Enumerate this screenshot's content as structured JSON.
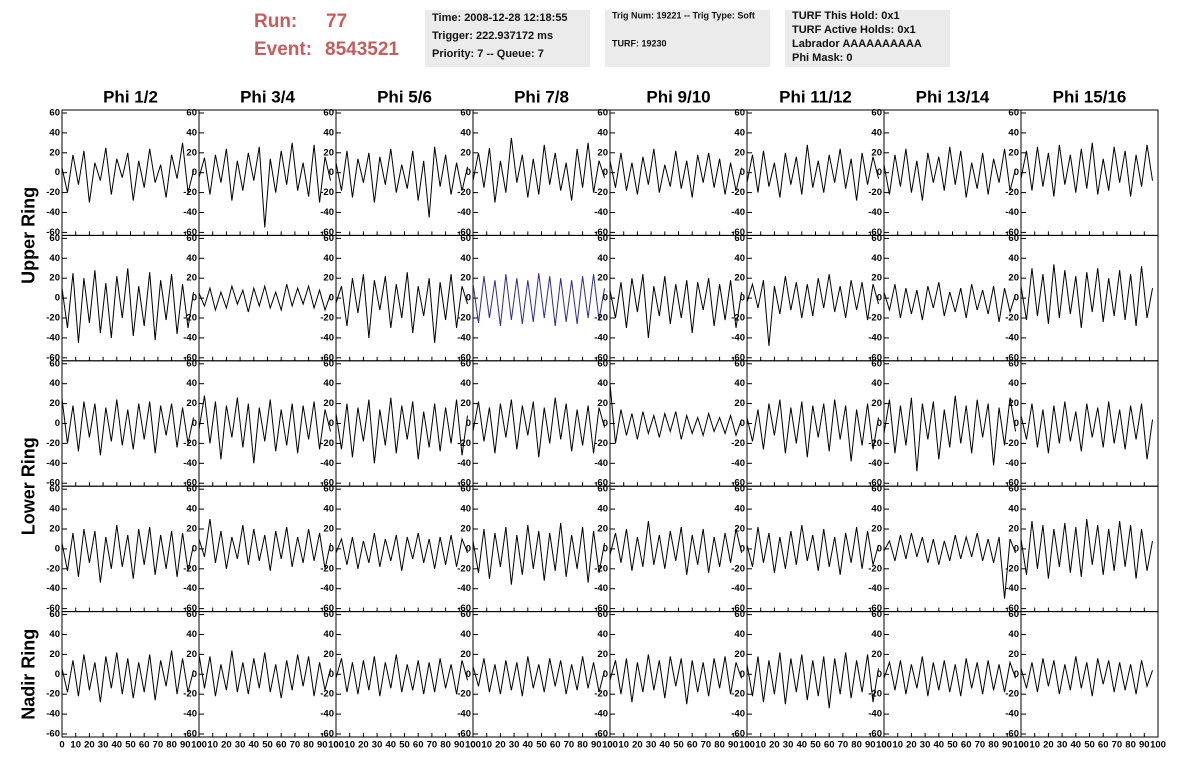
{
  "header": {
    "run_label": "Run:",
    "run": "77",
    "event_label": "Event:",
    "event": "8543521",
    "boxes": [
      [
        "Time: 2008-12-28 12:18:55",
        "Trigger: 222.937172 ms",
        "Priority: 7 -- Queue: 7"
      ],
      [
        "Trig Num: 19221 -- Trig Type: Soft",
        "TURF: 19230"
      ],
      [
        "TURF This Hold: 0x1",
        "TURF Active Holds: 0x1",
        "Labrador AAAAAAAAAA",
        "Phi Mask: 0"
      ]
    ]
  },
  "columns": [
    "Phi 1/2",
    "Phi 3/4",
    "Phi 5/6",
    "Phi 7/8",
    "Phi 9/10",
    "Phi 11/12",
    "Phi 13/14",
    "Phi 15/16"
  ],
  "ring_labels": [
    "Upper Ring",
    "Lower Ring",
    "Nadir Ring"
  ],
  "xlim": [
    0,
    100
  ],
  "ylim": [
    -63,
    63
  ],
  "xticks": [
    0,
    10,
    20,
    30,
    40,
    50,
    60,
    70,
    80,
    90,
    100
  ],
  "yticks": [
    60,
    40,
    20,
    0,
    -20,
    -40,
    -60
  ],
  "x": [
    0,
    4,
    8,
    12,
    16,
    20,
    24,
    28,
    32,
    36,
    40,
    44,
    48,
    52,
    56,
    60,
    64,
    68,
    72,
    76,
    80,
    84,
    88,
    92,
    96
  ],
  "rows": [
    [
      {
        "color": "#000000",
        "values": [
          5,
          -20,
          18,
          -12,
          22,
          -30,
          10,
          -8,
          25,
          -22,
          14,
          -5,
          20,
          -28,
          12,
          -15,
          24,
          -10,
          8,
          -25,
          18,
          -6,
          30,
          -20,
          2
        ]
      },
      {
        "color": "#000000",
        "values": [
          -5,
          15,
          -22,
          18,
          -10,
          24,
          -28,
          12,
          -18,
          20,
          -8,
          26,
          -55,
          14,
          -20,
          22,
          -12,
          30,
          -18,
          10,
          -24,
          28,
          -30,
          16,
          -8
        ]
      },
      {
        "color": "#000000",
        "values": [
          10,
          -18,
          22,
          -25,
          14,
          -10,
          20,
          -30,
          16,
          -12,
          24,
          -20,
          8,
          -16,
          22,
          -28,
          12,
          -45,
          26,
          -14,
          18,
          -22,
          10,
          -18,
          6
        ]
      },
      {
        "color": "#000000",
        "values": [
          -8,
          20,
          -15,
          25,
          -30,
          12,
          -20,
          35,
          -10,
          18,
          -25,
          14,
          -22,
          28,
          -12,
          20,
          -18,
          10,
          -28,
          24,
          -15,
          30,
          -20,
          12,
          -5
        ]
      },
      {
        "color": "#000000",
        "values": [
          12,
          -15,
          20,
          -18,
          10,
          -22,
          16,
          -12,
          24,
          -20,
          8,
          -14,
          22,
          -16,
          12,
          -25,
          18,
          -10,
          20,
          -15,
          14,
          -22,
          10,
          -18,
          5
        ]
      },
      {
        "color": "#000000",
        "values": [
          -10,
          18,
          -20,
          22,
          -14,
          10,
          -25,
          20,
          -12,
          16,
          -22,
          28,
          -15,
          12,
          -20,
          18,
          -10,
          24,
          -16,
          14,
          -28,
          20,
          -12,
          16,
          -6
        ]
      },
      {
        "color": "#000000",
        "values": [
          8,
          -22,
          18,
          -14,
          24,
          -20,
          12,
          -28,
          20,
          -10,
          16,
          -18,
          26,
          -12,
          22,
          -25,
          10,
          -16,
          20,
          -22,
          14,
          -10,
          24,
          -18,
          4
        ]
      },
      {
        "color": "#000000",
        "values": [
          -6,
          22,
          -18,
          26,
          -14,
          20,
          -24,
          28,
          -12,
          18,
          -20,
          24,
          -16,
          30,
          -22,
          14,
          -18,
          26,
          -10,
          22,
          -24,
          18,
          -14,
          28,
          -8
        ]
      }
    ],
    [
      {
        "color": "#000000",
        "values": [
          10,
          -30,
          25,
          -45,
          20,
          -25,
          28,
          -35,
          15,
          -40,
          22,
          -20,
          30,
          -38,
          12,
          -28,
          26,
          -42,
          18,
          -22,
          24,
          -36,
          14,
          -30,
          6
        ]
      },
      {
        "color": "#000000",
        "values": [
          5,
          -8,
          10,
          -12,
          6,
          -10,
          12,
          -6,
          8,
          -14,
          10,
          -8,
          12,
          -10,
          6,
          -12,
          14,
          -8,
          10,
          -6,
          12,
          -10,
          8,
          -12,
          4
        ]
      },
      {
        "color": "#000000",
        "values": [
          -5,
          12,
          -28,
          20,
          -15,
          24,
          -40,
          18,
          -12,
          22,
          -30,
          14,
          -20,
          26,
          -35,
          12,
          -18,
          20,
          -45,
          16,
          -22,
          24,
          -30,
          12,
          -6
        ]
      },
      {
        "color": "#2b2b9a",
        "values": [
          15,
          -25,
          22,
          -20,
          18,
          -28,
          24,
          -22,
          20,
          -26,
          18,
          -24,
          25,
          -20,
          22,
          -28,
          20,
          -24,
          18,
          -26,
          22,
          -20,
          24,
          -22,
          10
        ]
      },
      {
        "color": "#000000",
        "values": [
          8,
          -20,
          16,
          -30,
          20,
          -14,
          24,
          -40,
          12,
          -18,
          22,
          -26,
          14,
          -20,
          18,
          -35,
          16,
          -12,
          20,
          -28,
          14,
          -22,
          18,
          -30,
          6
        ]
      },
      {
        "color": "#000000",
        "values": [
          -4,
          14,
          -10,
          18,
          -48,
          12,
          -16,
          22,
          -12,
          16,
          -20,
          14,
          -18,
          20,
          -10,
          24,
          -14,
          12,
          -20,
          18,
          -12,
          16,
          -22,
          14,
          -6
        ]
      },
      {
        "color": "#000000",
        "values": [
          6,
          -12,
          14,
          -20,
          10,
          -16,
          8,
          -22,
          12,
          -10,
          16,
          -18,
          6,
          -14,
          10,
          -20,
          14,
          -12,
          8,
          -16,
          12,
          -24,
          10,
          -14,
          4
        ]
      },
      {
        "color": "#000000",
        "values": [
          12,
          -22,
          30,
          -18,
          24,
          -26,
          34,
          -20,
          28,
          -16,
          22,
          -30,
          26,
          -14,
          30,
          -24,
          20,
          -18,
          28,
          -22,
          24,
          -28,
          32,
          -20,
          10
        ]
      }
    ],
    [
      {
        "color": "#000000",
        "values": [
          25,
          -20,
          18,
          -28,
          22,
          -14,
          20,
          -32,
          16,
          -18,
          24,
          -22,
          14,
          -26,
          20,
          -16,
          22,
          -30,
          18,
          -12,
          20,
          -24,
          16,
          -20,
          6
        ]
      },
      {
        "color": "#000000",
        "values": [
          -6,
          28,
          -20,
          22,
          -36,
          18,
          -14,
          26,
          -24,
          20,
          -40,
          16,
          -18,
          24,
          -28,
          14,
          -22,
          20,
          -30,
          18,
          -16,
          22,
          -26,
          14,
          -8
        ]
      },
      {
        "color": "#000000",
        "values": [
          10,
          -26,
          20,
          -34,
          16,
          -18,
          24,
          -40,
          14,
          -22,
          26,
          -30,
          18,
          -16,
          22,
          -36,
          12,
          -24,
          20,
          -28,
          16,
          -20,
          24,
          -32,
          8
        ]
      },
      {
        "color": "#000000",
        "values": [
          -8,
          22,
          -18,
          16,
          -30,
          20,
          -14,
          24,
          -26,
          18,
          -12,
          22,
          -34,
          16,
          -20,
          26,
          -16,
          20,
          -28,
          14,
          -22,
          18,
          -30,
          16,
          -4
        ]
      },
      {
        "color": "#000000",
        "values": [
          40,
          -20,
          14,
          -12,
          10,
          -16,
          12,
          -10,
          8,
          -14,
          10,
          -8,
          12,
          -16,
          8,
          -10,
          6,
          -12,
          10,
          -8,
          6,
          -10,
          8,
          -12,
          4
        ]
      },
      {
        "color": "#000000",
        "values": [
          6,
          -18,
          14,
          -26,
          20,
          -12,
          24,
          -30,
          16,
          -20,
          22,
          -34,
          18,
          -14,
          20,
          -28,
          24,
          -16,
          18,
          -38,
          14,
          -22,
          20,
          -26,
          6
        ]
      },
      {
        "color": "#000000",
        "values": [
          -10,
          24,
          -30,
          18,
          -22,
          26,
          -48,
          20,
          -16,
          22,
          -36,
          14,
          -24,
          28,
          -20,
          18,
          -30,
          24,
          -14,
          20,
          -42,
          16,
          -22,
          26,
          -8
        ]
      },
      {
        "color": "#000000",
        "values": [
          8,
          -16,
          20,
          -24,
          14,
          -30,
          18,
          -20,
          22,
          -18,
          12,
          -28,
          20,
          -14,
          16,
          -24,
          22,
          -20,
          14,
          -26,
          18,
          -16,
          20,
          -36,
          4
        ]
      }
    ],
    [
      {
        "color": "#000000",
        "values": [
          6,
          -22,
          16,
          -28,
          20,
          -14,
          18,
          -34,
          12,
          -20,
          24,
          -18,
          14,
          -30,
          20,
          -16,
          22,
          -26,
          14,
          -20,
          18,
          -28,
          16,
          -22,
          4
        ]
      },
      {
        "color": "#000000",
        "values": [
          10,
          -8,
          30,
          -14,
          18,
          -20,
          12,
          -10,
          24,
          -16,
          20,
          -12,
          14,
          -22,
          18,
          -10,
          22,
          -18,
          12,
          -14,
          20,
          -12,
          16,
          -20,
          6
        ]
      },
      {
        "color": "#000000",
        "values": [
          -4,
          10,
          -16,
          12,
          -20,
          8,
          -14,
          16,
          -18,
          10,
          -12,
          14,
          -22,
          12,
          -10,
          16,
          -14,
          10,
          -20,
          12,
          -16,
          14,
          -18,
          10,
          -4
        ]
      },
      {
        "color": "#000000",
        "values": [
          8,
          -24,
          20,
          -30,
          16,
          -18,
          22,
          -36,
          14,
          -26,
          24,
          -20,
          18,
          -32,
          16,
          -22,
          26,
          -28,
          14,
          -20,
          22,
          -34,
          18,
          -24,
          6
        ]
      },
      {
        "color": "#000000",
        "values": [
          -6,
          16,
          -14,
          20,
          -22,
          12,
          -18,
          28,
          -16,
          14,
          -20,
          18,
          -12,
          22,
          -26,
          14,
          -16,
          20,
          -24,
          12,
          -18,
          16,
          -14,
          20,
          -4
        ]
      },
      {
        "color": "#000000",
        "values": [
          4,
          -18,
          22,
          -14,
          16,
          -24,
          12,
          -20,
          18,
          -16,
          24,
          -12,
          14,
          -22,
          20,
          -18,
          12,
          -26,
          16,
          -14,
          22,
          -20,
          18,
          -16,
          4
        ]
      },
      {
        "color": "#000000",
        "values": [
          -2,
          8,
          -12,
          14,
          -10,
          16,
          -8,
          12,
          -14,
          10,
          -16,
          8,
          -12,
          14,
          -10,
          12,
          -8,
          16,
          -12,
          10,
          -14,
          12,
          -50,
          10,
          -4
        ]
      },
      {
        "color": "#000000",
        "values": [
          10,
          -26,
          28,
          -20,
          24,
          -30,
          20,
          -18,
          26,
          -24,
          22,
          -28,
          30,
          -16,
          24,
          -26,
          20,
          -22,
          28,
          -18,
          24,
          -30,
          20,
          -22,
          8
        ]
      }
    ],
    [
      {
        "color": "#000000",
        "values": [
          6,
          -18,
          14,
          -22,
          20,
          -16,
          12,
          -28,
          18,
          -14,
          22,
          -20,
          16,
          -24,
          12,
          -18,
          20,
          -26,
          14,
          -12,
          24,
          -20,
          16,
          -18,
          4
        ]
      },
      {
        "color": "#000000",
        "values": [
          20,
          -14,
          18,
          -22,
          10,
          -16,
          24,
          -18,
          12,
          -20,
          16,
          -14,
          22,
          -18,
          10,
          -24,
          14,
          -16,
          20,
          -12,
          18,
          -22,
          12,
          -16,
          6
        ]
      },
      {
        "color": "#000000",
        "values": [
          -4,
          16,
          -18,
          12,
          -20,
          14,
          -16,
          18,
          -22,
          12,
          -14,
          20,
          -18,
          10,
          -16,
          14,
          -20,
          12,
          -18,
          16,
          -14,
          10,
          -20,
          14,
          -6
        ]
      },
      {
        "color": "#000000",
        "values": [
          8,
          -12,
          16,
          -18,
          10,
          -20,
          14,
          -16,
          12,
          -22,
          18,
          -14,
          10,
          -18,
          16,
          -12,
          14,
          -20,
          10,
          -16,
          18,
          -14,
          12,
          -18,
          4
        ]
      },
      {
        "color": "#000000",
        "values": [
          -6,
          14,
          -20,
          16,
          -28,
          12,
          -18,
          20,
          -16,
          14,
          -24,
          18,
          -12,
          16,
          -30,
          14,
          -18,
          12,
          -22,
          16,
          -14,
          18,
          -20,
          12,
          -4
        ]
      },
      {
        "color": "#000000",
        "values": [
          10,
          -22,
          18,
          -28,
          14,
          -20,
          22,
          -30,
          16,
          -18,
          20,
          -26,
          14,
          -22,
          18,
          -34,
          16,
          -20,
          22,
          -24,
          14,
          -18,
          20,
          -28,
          6
        ]
      },
      {
        "color": "#000000",
        "values": [
          -4,
          12,
          -16,
          14,
          -20,
          10,
          -14,
          18,
          -22,
          12,
          -16,
          14,
          -18,
          10,
          -22,
          16,
          -14,
          12,
          -20,
          14,
          -16,
          10,
          -18,
          12,
          -4
        ]
      },
      {
        "color": "#000000",
        "values": [
          6,
          -14,
          12,
          -18,
          16,
          -12,
          14,
          -20,
          10,
          -16,
          18,
          -14,
          12,
          -22,
          16,
          -10,
          14,
          -18,
          12,
          -16,
          10,
          -20,
          14,
          -12,
          4
        ]
      }
    ]
  ]
}
